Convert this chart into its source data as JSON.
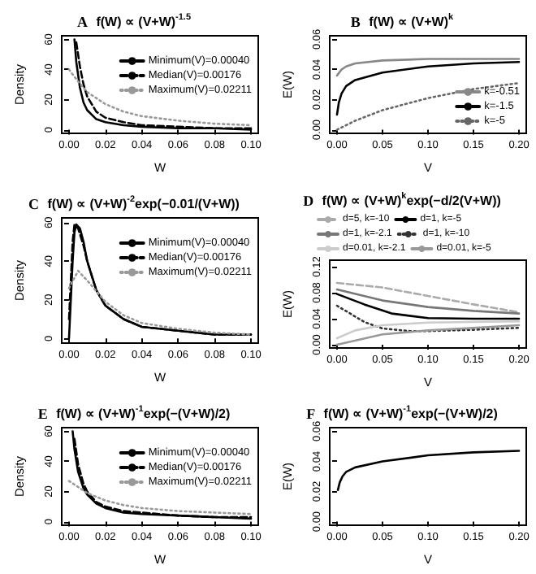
{
  "chart_data": [
    {
      "type": "line",
      "title": "A f(W) ∝ (V+W)$^{-1.5}$",
      "xlabel": "W",
      "ylabel": "Density",
      "legend": "top right",
      "xlim": [
        -0.004,
        0.104
      ],
      "ylim": [
        -2.4,
        62.4
      ],
      "xticks": [
        {
          "value": 0,
          "label": "0.00"
        },
        {
          "value": 0.02,
          "label": "0.02"
        },
        {
          "value": 0.04,
          "label": "0.04"
        },
        {
          "value": 0.06,
          "label": "0.06"
        },
        {
          "value": 0.08,
          "label": "0.08"
        },
        {
          "value": 0.1,
          "label": "0.10"
        }
      ],
      "yticks": [
        0,
        20,
        40,
        60
      ],
      "series": [
        {
          "name": "Minimum(V)=0.00040",
          "color": "#000000",
          "line_style": "solid",
          "x": [
            0.003,
            0.004,
            0.006,
            0.008,
            0.01,
            0.015,
            0.02,
            0.03,
            0.04,
            0.06,
            0.08,
            0.1
          ],
          "values": [
            60,
            45,
            28,
            18,
            13,
            7,
            5,
            3,
            2,
            1,
            1,
            0
          ]
        },
        {
          "name": "Median(V)=0.00176",
          "color": "#000000",
          "line_style": "dashed",
          "x": [
            0.004,
            0.006,
            0.008,
            0.01,
            0.015,
            0.02,
            0.03,
            0.04,
            0.06,
            0.08,
            0.1
          ],
          "values": [
            58,
            42,
            30,
            22,
            12,
            8,
            5,
            3,
            2,
            1,
            1
          ]
        },
        {
          "name": "Maximum(V)=0.02211",
          "color": "#999999",
          "line_style": "dotted",
          "x": [
            0,
            0.005,
            0.01,
            0.02,
            0.03,
            0.04,
            0.06,
            0.08,
            0.1
          ],
          "values": [
            40,
            32,
            25,
            17,
            12,
            9,
            6,
            4,
            3
          ]
        }
      ]
    },
    {
      "type": "line",
      "title": "B f(W) ∝ (V+W)$^{k}$",
      "xlabel": "V",
      "ylabel": "E(W)",
      "legend": "bottom right",
      "xlim": [
        -0.008,
        0.208
      ],
      "ylim": [
        -0.0024,
        0.0624
      ],
      "xticks": [
        {
          "value": 0,
          "label": "0.00"
        },
        {
          "value": 0.05,
          "label": "0.05"
        },
        {
          "value": 0.1,
          "label": "0.10"
        },
        {
          "value": 0.15,
          "label": "0.15"
        },
        {
          "value": 0.2,
          "label": "0.20"
        }
      ],
      "yticks": [
        {
          "value": 0,
          "label": "0.00"
        },
        {
          "value": 0.02,
          "label": "0.02"
        },
        {
          "value": 0.04,
          "label": "0.04"
        },
        {
          "value": 0.06,
          "label": "0.06"
        }
      ],
      "series": [
        {
          "name": "k=-0.51",
          "color": "#888888",
          "line_style": "solid",
          "x": [
            0,
            0.005,
            0.01,
            0.02,
            0.05,
            0.1,
            0.15,
            0.2
          ],
          "values": [
            0.036,
            0.04,
            0.042,
            0.044,
            0.046,
            0.047,
            0.047,
            0.047
          ]
        },
        {
          "name": "k=-1.5",
          "color": "#000000",
          "line_style": "solid",
          "x": [
            0,
            0.002,
            0.005,
            0.01,
            0.02,
            0.05,
            0.1,
            0.15,
            0.2
          ],
          "values": [
            0.01,
            0.018,
            0.024,
            0.029,
            0.033,
            0.038,
            0.042,
            0.044,
            0.045
          ]
        },
        {
          "name": "k=-5",
          "color": "#666666",
          "line_style": "dotted",
          "x": [
            0,
            0.02,
            0.05,
            0.1,
            0.15,
            0.2
          ],
          "values": [
            0,
            0.006,
            0.013,
            0.021,
            0.027,
            0.031
          ]
        }
      ]
    },
    {
      "type": "line",
      "title": "C f(W) ∝ (V+W)$^{-2}$exp(−0.01/(V+W))",
      "xlabel": "W",
      "ylabel": "Density",
      "legend": "top right",
      "xlim": [
        -0.004,
        0.104
      ],
      "ylim": [
        -2.4,
        62.4
      ],
      "xticks": [
        {
          "value": 0,
          "label": "0.00"
        },
        {
          "value": 0.02,
          "label": "0.02"
        },
        {
          "value": 0.04,
          "label": "0.04"
        },
        {
          "value": 0.06,
          "label": "0.06"
        },
        {
          "value": 0.08,
          "label": "0.08"
        },
        {
          "value": 0.1,
          "label": "0.10"
        }
      ],
      "yticks": [
        0,
        20,
        40,
        60
      ],
      "series": [
        {
          "name": "Minimum(V)=0.00040",
          "color": "#000000",
          "line_style": "solid",
          "x": [
            0,
            0.002,
            0.003,
            0.004,
            0.006,
            0.008,
            0.01,
            0.015,
            0.02,
            0.03,
            0.04,
            0.06,
            0.08,
            0.1
          ],
          "values": [
            0,
            40,
            55,
            59,
            57,
            50,
            40,
            25,
            17,
            10,
            6,
            4,
            2,
            2
          ]
        },
        {
          "name": "Median(V)=0.00176",
          "color": "#000000",
          "line_style": "dashed",
          "x": [
            0,
            0.002,
            0.003,
            0.005,
            0.008,
            0.01,
            0.015,
            0.02,
            0.03,
            0.04,
            0.06,
            0.08,
            0.1
          ],
          "values": [
            10,
            50,
            59,
            57,
            48,
            40,
            25,
            17,
            10,
            6,
            4,
            2,
            2
          ]
        },
        {
          "name": "Maximum(V)=0.02211",
          "color": "#999999",
          "line_style": "dotted",
          "x": [
            0,
            0.005,
            0.01,
            0.02,
            0.03,
            0.04,
            0.06,
            0.08,
            0.1
          ],
          "values": [
            26,
            35,
            30,
            19,
            12,
            8,
            5,
            3,
            2
          ]
        }
      ]
    },
    {
      "type": "line",
      "title": "D f(W) ∝ (V+W)$^{k}$exp(−d/2(V+W))",
      "xlabel": "V",
      "ylabel": "E(W)",
      "legend": "top",
      "xlim": [
        -0.008,
        0.208
      ],
      "ylim": [
        -0.005,
        0.13
      ],
      "xticks": [
        {
          "value": 0,
          "label": "0.00"
        },
        {
          "value": 0.05,
          "label": "0.05"
        },
        {
          "value": 0.1,
          "label": "0.10"
        },
        {
          "value": 0.15,
          "label": "0.15"
        },
        {
          "value": 0.2,
          "label": "0.20"
        }
      ],
      "yticks": [
        {
          "value": 0,
          "label": "0.00"
        },
        {
          "value": 0.04,
          "label": "0.04"
        },
        {
          "value": 0.08,
          "label": "0.08"
        },
        {
          "value": 0.12,
          "label": "0.12"
        }
      ],
      "series": [
        {
          "name": "d=5, k=-10",
          "color": "#aaaaaa",
          "line_style": "dashed",
          "x": [
            0,
            0.05,
            0.1,
            0.15,
            0.2
          ],
          "values": [
            0.095,
            0.088,
            0.075,
            0.062,
            0.05
          ]
        },
        {
          "name": "d=1, k=-5",
          "color": "#000000",
          "line_style": "solid",
          "x": [
            0,
            0.03,
            0.06,
            0.1,
            0.15,
            0.2
          ],
          "values": [
            0.078,
            0.062,
            0.048,
            0.041,
            0.04,
            0.04
          ]
        },
        {
          "name": "d=1, k=-2.1",
          "color": "#777777",
          "line_style": "solid",
          "x": [
            0,
            0.05,
            0.1,
            0.15,
            0.2
          ],
          "values": [
            0.085,
            0.068,
            0.058,
            0.052,
            0.048
          ]
        },
        {
          "name": "d=1, k=-10",
          "color": "#333333",
          "line_style": "dotted",
          "x": [
            0,
            0.03,
            0.05,
            0.08,
            0.1,
            0.15,
            0.2
          ],
          "values": [
            0.06,
            0.035,
            0.025,
            0.021,
            0.021,
            0.023,
            0.026
          ]
        },
        {
          "name": "d=0.01, k=-2.1",
          "color": "#cccccc",
          "line_style": "solid",
          "x": [
            0,
            0.02,
            0.05,
            0.1,
            0.2
          ],
          "values": [
            0.01,
            0.022,
            0.03,
            0.034,
            0.036
          ]
        },
        {
          "name": "d=0.01, k=-5",
          "color": "#999999",
          "line_style": "solid",
          "x": [
            0,
            0.05,
            0.1,
            0.15,
            0.2
          ],
          "values": [
            0,
            0.016,
            0.022,
            0.026,
            0.03
          ]
        }
      ]
    },
    {
      "type": "line",
      "title": "E f(W) ∝ (V+W)$^{-1}$exp(−(V+W)/2)",
      "xlabel": "W",
      "ylabel": "Density",
      "legend": "top right",
      "xlim": [
        -0.004,
        0.104
      ],
      "ylim": [
        -2.4,
        62.4
      ],
      "xticks": [
        {
          "value": 0,
          "label": "0.00"
        },
        {
          "value": 0.02,
          "label": "0.02"
        },
        {
          "value": 0.04,
          "label": "0.04"
        },
        {
          "value": 0.06,
          "label": "0.06"
        },
        {
          "value": 0.08,
          "label": "0.08"
        },
        {
          "value": 0.1,
          "label": "0.10"
        }
      ],
      "yticks": [
        0,
        20,
        40,
        60
      ],
      "series": [
        {
          "name": "Minimum(V)=0.00040",
          "color": "#000000",
          "line_style": "solid",
          "x": [
            0.002,
            0.003,
            0.005,
            0.008,
            0.01,
            0.015,
            0.02,
            0.03,
            0.04,
            0.06,
            0.08,
            0.1
          ],
          "values": [
            60,
            48,
            33,
            22,
            18,
            12,
            9,
            6,
            5,
            4,
            3,
            2
          ]
        },
        {
          "name": "Median(V)=0.00176",
          "color": "#000000",
          "line_style": "dashed",
          "x": [
            0.003,
            0.005,
            0.008,
            0.01,
            0.015,
            0.02,
            0.03,
            0.04,
            0.06,
            0.08,
            0.1
          ],
          "values": [
            55,
            38,
            25,
            20,
            13,
            10,
            7,
            6,
            4,
            3,
            3
          ]
        },
        {
          "name": "Maximum(V)=0.02211",
          "color": "#999999",
          "line_style": "dotted",
          "x": [
            0,
            0.005,
            0.01,
            0.02,
            0.03,
            0.04,
            0.06,
            0.08,
            0.1
          ],
          "values": [
            27,
            23,
            19,
            14,
            11,
            9,
            7,
            6,
            5
          ]
        }
      ]
    },
    {
      "type": "line",
      "title": "F f(W) ∝ (V+W)$^{-1}$exp(−(V+W)/2)",
      "xlabel": "V",
      "ylabel": "E(W)",
      "xlim": [
        -0.008,
        0.208
      ],
      "ylim": [
        -0.0024,
        0.0624
      ],
      "xticks": [
        {
          "value": 0,
          "label": "0.00"
        },
        {
          "value": 0.05,
          "label": "0.05"
        },
        {
          "value": 0.1,
          "label": "0.10"
        },
        {
          "value": 0.15,
          "label": "0.15"
        },
        {
          "value": 0.2,
          "label": "0.20"
        }
      ],
      "yticks": [
        {
          "value": 0,
          "label": "0.00"
        },
        {
          "value": 0.02,
          "label": "0.02"
        },
        {
          "value": 0.04,
          "label": "0.04"
        },
        {
          "value": 0.06,
          "label": "0.06"
        }
      ],
      "series": [
        {
          "color": "#000000",
          "line_style": "solid",
          "x": [
            0.001,
            0.003,
            0.006,
            0.01,
            0.02,
            0.05,
            0.1,
            0.15,
            0.2
          ],
          "values": [
            0.021,
            0.026,
            0.03,
            0.033,
            0.036,
            0.04,
            0.044,
            0.046,
            0.047
          ]
        }
      ]
    }
  ]
}
